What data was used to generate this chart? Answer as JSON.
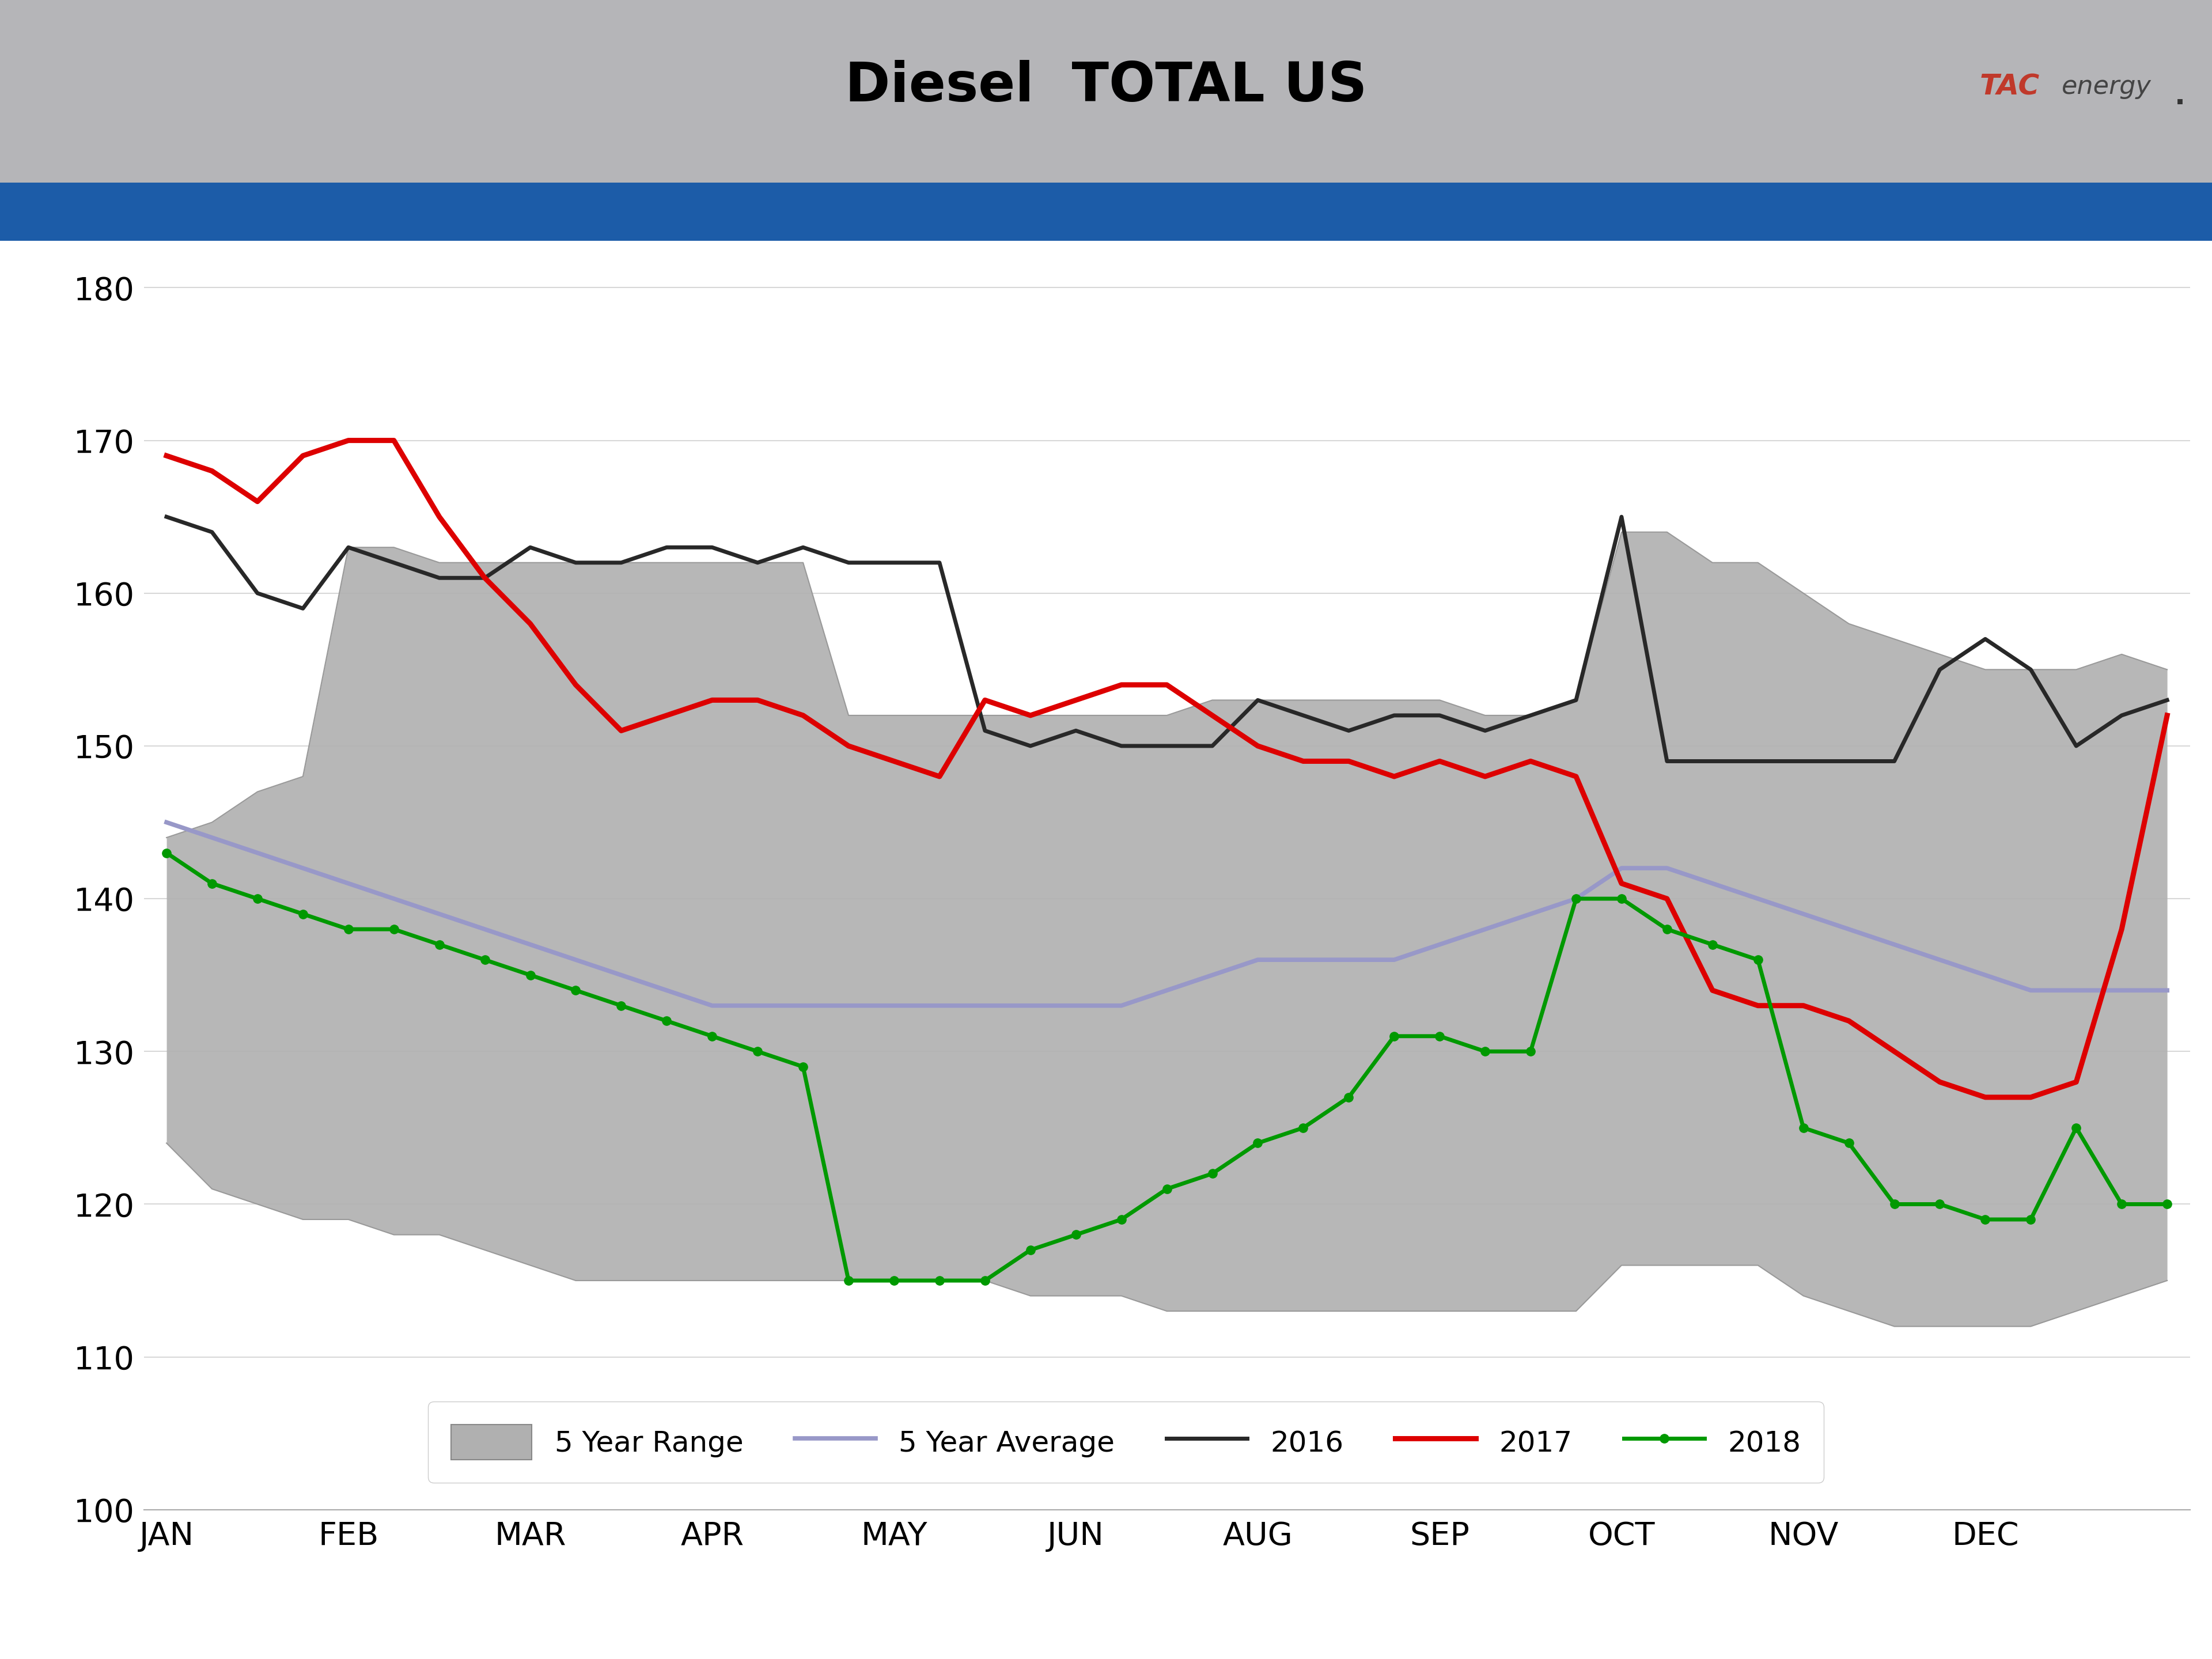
{
  "title": "Diesel  TOTAL US",
  "title_bg_color": "#b5b5b8",
  "blue_bar_color": "#1c5ca8",
  "ylim": [
    100,
    182
  ],
  "yticks": [
    100,
    110,
    120,
    130,
    140,
    150,
    160,
    170,
    180
  ],
  "x_labels": [
    "JAN",
    "FEB",
    "MAR",
    "APR",
    "MAY",
    "JUN",
    "AUG",
    "SEP",
    "OCT",
    "NOV",
    "DEC"
  ],
  "five_yr_range_upper": [
    144,
    145,
    147,
    148,
    163,
    163,
    162,
    162,
    162,
    162,
    162,
    162,
    162,
    162,
    162,
    152,
    152,
    152,
    152,
    152,
    152,
    152,
    152,
    153,
    153,
    153,
    153,
    153,
    153,
    152,
    152,
    153,
    164,
    164,
    162,
    162,
    160,
    158,
    157,
    156,
    155,
    155,
    155,
    156,
    155
  ],
  "five_yr_range_lower": [
    124,
    121,
    120,
    119,
    119,
    118,
    118,
    117,
    116,
    115,
    115,
    115,
    115,
    115,
    115,
    115,
    115,
    115,
    115,
    114,
    114,
    114,
    113,
    113,
    113,
    113,
    113,
    113,
    113,
    113,
    113,
    113,
    116,
    116,
    116,
    116,
    114,
    113,
    112,
    112,
    112,
    112,
    113,
    114,
    115
  ],
  "five_yr_avg": [
    145,
    144,
    143,
    142,
    141,
    140,
    139,
    138,
    137,
    136,
    135,
    134,
    133,
    133,
    133,
    133,
    133,
    133,
    133,
    133,
    133,
    133,
    134,
    135,
    136,
    136,
    136,
    136,
    137,
    138,
    139,
    140,
    142,
    142,
    141,
    140,
    139,
    138,
    137,
    136,
    135,
    134,
    134,
    134,
    134
  ],
  "line_2016": [
    165,
    164,
    160,
    159,
    163,
    162,
    161,
    161,
    163,
    162,
    162,
    163,
    163,
    162,
    163,
    162,
    162,
    162,
    151,
    150,
    151,
    150,
    150,
    150,
    153,
    152,
    151,
    152,
    152,
    151,
    152,
    153,
    165,
    149,
    149,
    149,
    149,
    149,
    149,
    155,
    157,
    155,
    150,
    152,
    153
  ],
  "line_2017": [
    169,
    168,
    166,
    169,
    170,
    170,
    165,
    161,
    158,
    154,
    151,
    152,
    153,
    153,
    152,
    150,
    149,
    148,
    153,
    152,
    153,
    154,
    154,
    152,
    150,
    149,
    149,
    148,
    149,
    148,
    149,
    148,
    141,
    140,
    134,
    133,
    133,
    132,
    130,
    128,
    127,
    127,
    128,
    138,
    152
  ],
  "line_2018": [
    143,
    141,
    140,
    139,
    138,
    138,
    137,
    136,
    135,
    134,
    133,
    132,
    131,
    130,
    129,
    115,
    115,
    115,
    115,
    117,
    118,
    119,
    121,
    122,
    124,
    125,
    127,
    131,
    131,
    130,
    130,
    140,
    140,
    138,
    137,
    136,
    125,
    124,
    120,
    120,
    119,
    119,
    125,
    120,
    120
  ],
  "range_color": "#b0b0b0",
  "range_alpha": 0.9,
  "avg_color": "#9898c8",
  "line_2016_color": "#282828",
  "line_2017_color": "#dd0000",
  "line_2018_color": "#009900",
  "legend_items": [
    "5 Year Range",
    "5 Year Average",
    "2016",
    "2017",
    "2018"
  ]
}
